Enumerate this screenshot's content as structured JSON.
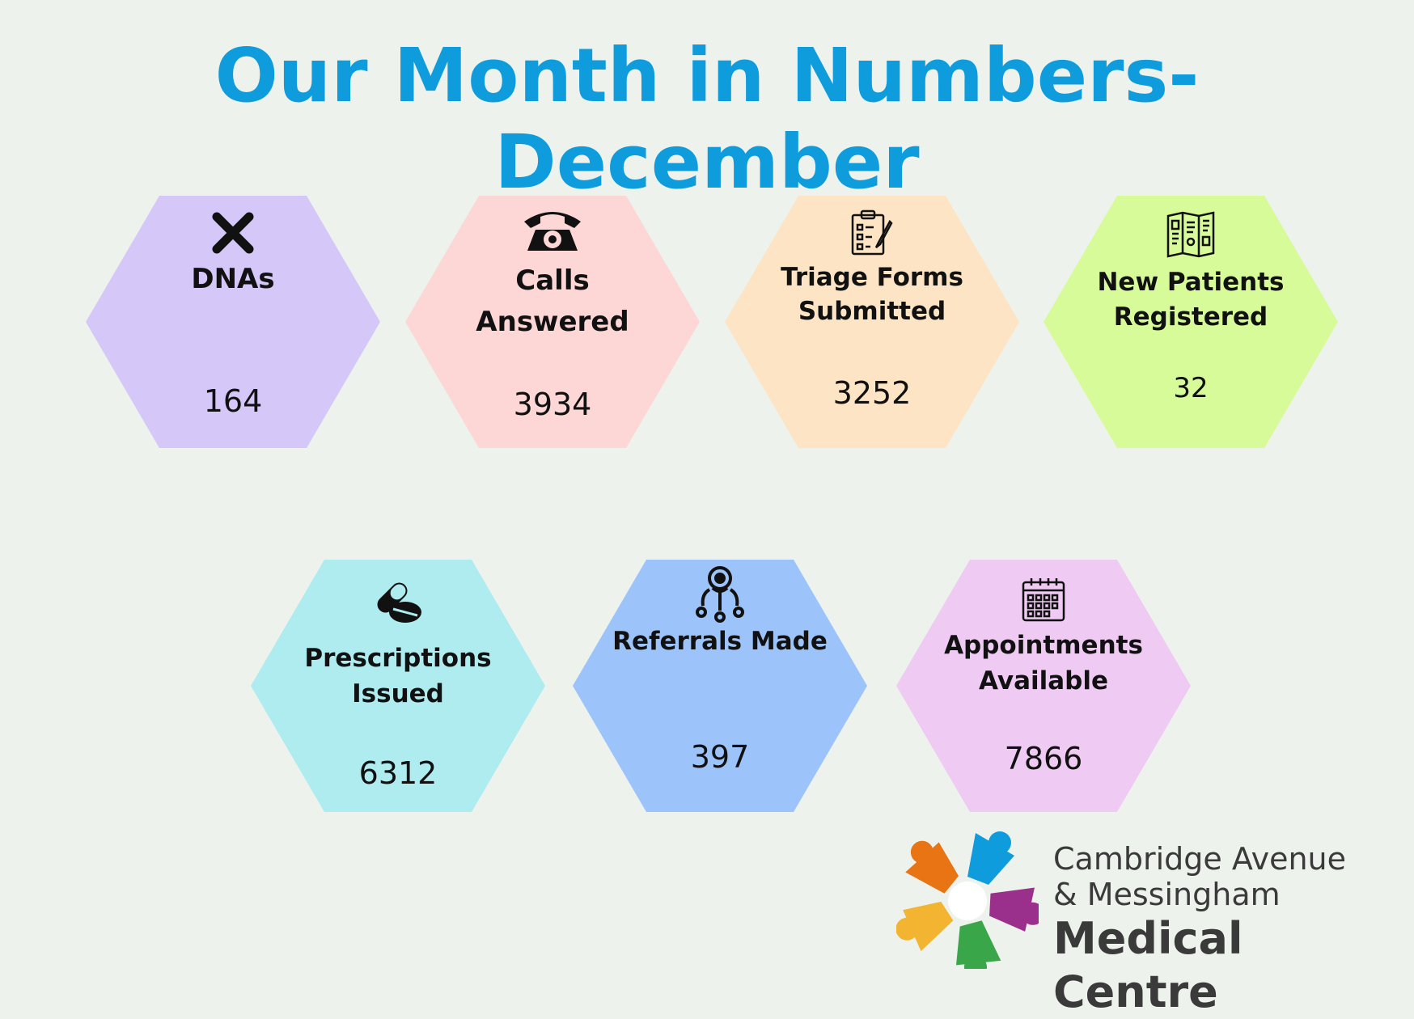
{
  "title": "Our Month in Numbers- December",
  "stats": [
    {
      "label": "DNAs",
      "value": "164",
      "color": "#d5c8f8",
      "icon": "x-mark-icon"
    },
    {
      "label": "Calls Answered",
      "value": "3934",
      "color": "#fdd6d6",
      "icon": "telephone-icon"
    },
    {
      "label": "Triage Forms Submitted",
      "value": "3252",
      "color": "#fde4c4",
      "icon": "clipboard-icon"
    },
    {
      "label": "New Patients Registered",
      "value": "32",
      "color": "#d6fb98",
      "icon": "leaflet-map-icon"
    },
    {
      "label": "Prescriptions Issued",
      "value": "6312",
      "color": "#aeecf0",
      "icon": "pills-icon"
    },
    {
      "label": "Referrals Made",
      "value": "397",
      "color": "#9cc3fa",
      "icon": "referral-network-icon"
    },
    {
      "label": "Appointments Available",
      "value": "7866",
      "color": "#efcbf3",
      "icon": "calendar-icon"
    }
  ],
  "logo": {
    "line1": "Cambridge Avenue",
    "line2": "& Messingham",
    "line3": "Medical Centre",
    "colors": [
      "#0f9cdd",
      "#9b2f8c",
      "#3aa64a",
      "#f2b431",
      "#e87414"
    ]
  }
}
